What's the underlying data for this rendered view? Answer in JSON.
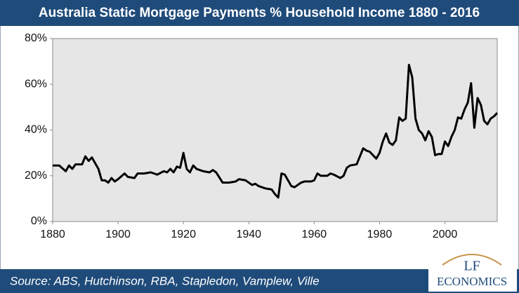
{
  "chart_data": {
    "type": "line",
    "title": "Australia Static Mortgage Payments % Household Income 1880 - 2016",
    "source": "Source: ABS, Hutchinson, RBA, Stapledon, Vamplew, Ville",
    "logo": {
      "mark": "LF",
      "name": "ECONOMICS"
    },
    "color": "#000000",
    "x": [
      1880,
      1882,
      1884,
      1885,
      1886,
      1887,
      1889,
      1890,
      1891,
      1892,
      1894,
      1895,
      1896,
      1897,
      1898,
      1899,
      1900,
      1902,
      1903,
      1905,
      1906,
      1908,
      1910,
      1912,
      1914,
      1915,
      1916,
      1917,
      1918,
      1919,
      1920,
      1921,
      1922,
      1923,
      1924,
      1926,
      1928,
      1929,
      1930,
      1932,
      1934,
      1936,
      1937,
      1939,
      1941,
      1942,
      1943,
      1945,
      1947,
      1948,
      1949,
      1950,
      1951,
      1953,
      1954,
      1956,
      1957,
      1959,
      1960,
      1961,
      1962,
      1964,
      1965,
      1966,
      1968,
      1969,
      1970,
      1971,
      1973,
      1975,
      1976,
      1977,
      1979,
      1980,
      1981,
      1982,
      1983,
      1984,
      1985,
      1986,
      1987,
      1988,
      1989,
      1990,
      1991,
      1992,
      1993,
      1994,
      1995,
      1996,
      1997,
      1998,
      1999,
      2000,
      2001,
      2002,
      2003,
      2004,
      2005,
      2006,
      2007,
      2008,
      2009,
      2010,
      2011,
      2012,
      2013,
      2014,
      2015,
      2016
    ],
    "values": [
      24.5,
      24.5,
      22,
      24.5,
      23,
      25,
      25,
      28.5,
      26.5,
      28,
      23,
      18,
      18,
      17,
      19,
      17.5,
      18.5,
      21,
      19.5,
      19,
      21,
      21,
      21.5,
      20.5,
      22,
      21.5,
      23,
      21.5,
      24,
      23.5,
      30,
      23,
      21.5,
      24.5,
      23,
      22,
      21.5,
      22.5,
      21.5,
      17,
      17,
      17.5,
      18.5,
      18,
      16,
      16.5,
      15.5,
      14.5,
      14,
      12,
      10.5,
      21,
      20.5,
      15.5,
      15,
      17,
      17.5,
      17.5,
      18,
      21,
      20,
      20,
      21,
      20.5,
      19,
      20,
      23.5,
      24.5,
      25,
      32,
      31,
      30.5,
      27.5,
      30,
      35,
      38.5,
      34.5,
      33.5,
      35.5,
      45.5,
      44,
      45,
      68.5,
      63,
      45,
      40,
      38.5,
      35.5,
      39.5,
      37,
      29,
      29.5,
      29.5,
      35,
      33,
      37,
      40,
      45.5,
      45,
      49,
      52,
      60.5,
      41,
      54,
      51,
      44,
      42.5,
      45,
      46,
      47.5
    ],
    "xlim": [
      1880,
      2016
    ],
    "xticks": [
      1880,
      1900,
      1920,
      1940,
      1960,
      1980,
      2000
    ],
    "ylim": [
      0,
      80
    ],
    "yticks": [
      {
        "value": 0,
        "label": "0%"
      },
      {
        "value": 20,
        "label": "20%"
      },
      {
        "value": 40,
        "label": "40%"
      },
      {
        "value": 60,
        "label": "60%"
      },
      {
        "value": 80,
        "label": "80%"
      }
    ],
    "grid": false
  }
}
